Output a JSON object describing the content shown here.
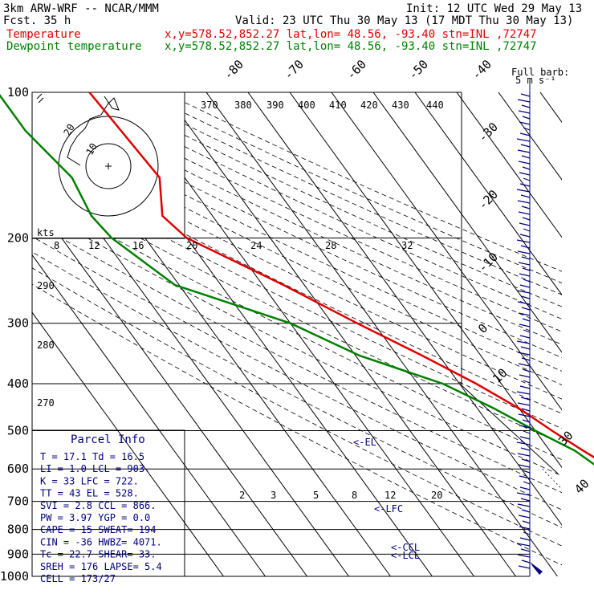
{
  "header": {
    "model": "3km ARW-WRF -- NCAR/MMM",
    "init": "Init: 12 UTC Wed 29 May 13",
    "fcst": "Fcst.    35 h",
    "valid": "Valid: 23 UTC Thu 30 May 13 (17 MDT Thu 30 May 13)",
    "temp_label": "Temperature",
    "dew_label": "Dewpoint temperature",
    "loc": "x,y=578.52,852.27    lat,lon= 48.56, -93.40   stn=INL ,72747"
  },
  "colors": {
    "temperature": "#e00000",
    "dewpoint": "#008000",
    "text_blue": "#000080"
  },
  "barb_legend": {
    "title": "Full barb:",
    "value": "5 m s⁻¹"
  },
  "hodograph": {
    "kts_label": "kts",
    "speed_labels": [
      "8",
      "12",
      "16",
      "20",
      "24",
      "28",
      "32"
    ],
    "ring_labels": [
      "10",
      "20"
    ]
  },
  "theta_labels": [
    "370",
    "380",
    "390",
    "400",
    "410",
    "420",
    "430",
    "440"
  ],
  "theta_side_labels": [
    "290",
    "280",
    "270"
  ],
  "mixing_ratio_labels": [
    "2",
    "3",
    "5",
    "8",
    "12",
    "20"
  ],
  "annotations": {
    "el": "<-EL",
    "lfc": "<-LFC",
    "ccl": "<-CCL",
    "lcl": "<-LCL"
  },
  "parcel_info": {
    "title": "Parcel Info",
    "rows": [
      "T  =   17.1  Td =  16.5",
      "LI =    1.0  LCL =  903.",
      "K  =     33  LFC =  722.",
      "TT =     43  EL  =  528.",
      "SVI =   2.8  CCL =  866.",
      "PW =   3.97  YGP =   0.0",
      "CAPE =   15  SWEAT=  194",
      "CIN =   -36  HWBZ= 4071.",
      "Tc =   22.7  SHEAR=  33.",
      "SREH =  176  LAPSE=  5.4",
      "CELL = 173/27"
    ]
  },
  "chart_data": {
    "type": "line",
    "diagram": "skew-T log-P",
    "pressure_levels": [
      100,
      200,
      300,
      400,
      500,
      600,
      700,
      800,
      900,
      1000
    ],
    "temperature_isotherm_labels": [
      -80,
      -70,
      -60,
      -50,
      -40,
      -30,
      -20,
      -10,
      0,
      10,
      20,
      30,
      40
    ],
    "yscale": "log",
    "series": [
      {
        "name": "Temperature",
        "points": [
          [
            100,
            -58
          ],
          [
            150,
            -56
          ],
          [
            180,
            -62
          ],
          [
            200,
            -60
          ],
          [
            250,
            -45
          ],
          [
            300,
            -34
          ],
          [
            350,
            -24
          ],
          [
            400,
            -16
          ],
          [
            450,
            -10
          ],
          [
            500,
            -6
          ],
          [
            550,
            -2
          ],
          [
            600,
            2
          ],
          [
            650,
            5
          ],
          [
            700,
            7
          ],
          [
            750,
            10
          ],
          [
            800,
            12
          ],
          [
            850,
            14
          ],
          [
            880,
            16
          ],
          [
            910,
            18
          ],
          [
            950,
            17
          ],
          [
            975,
            17
          ]
        ]
      },
      {
        "name": "Dewpoint temperature",
        "points": [
          [
            100,
            -80
          ],
          [
            120,
            -80
          ],
          [
            150,
            -77
          ],
          [
            180,
            -79
          ],
          [
            200,
            -78
          ],
          [
            250,
            -71
          ],
          [
            300,
            -50
          ],
          [
            350,
            -39
          ],
          [
            400,
            -24
          ],
          [
            450,
            -16
          ],
          [
            500,
            -10
          ],
          [
            550,
            -4
          ],
          [
            600,
            -1
          ],
          [
            650,
            2
          ],
          [
            700,
            4
          ],
          [
            750,
            5
          ],
          [
            800,
            6
          ],
          [
            850,
            8
          ],
          [
            880,
            10
          ],
          [
            910,
            16
          ],
          [
            950,
            16
          ],
          [
            975,
            16
          ]
        ]
      }
    ]
  }
}
